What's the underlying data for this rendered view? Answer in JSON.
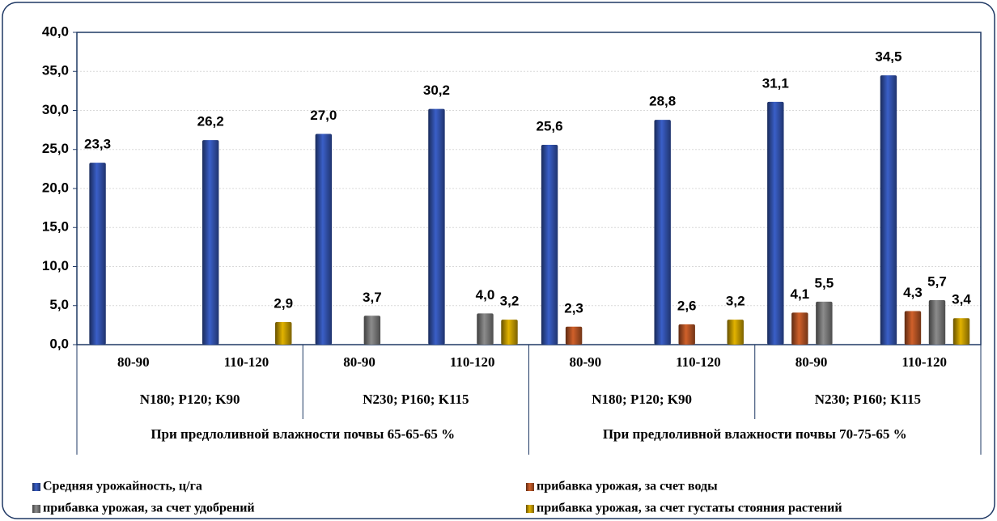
{
  "chart_data": {
    "type": "bar",
    "categories": [
      "80-90",
      "110-120",
      "80-90",
      "110-120",
      "80-90",
      "110-120",
      "80-90",
      "110-120"
    ],
    "category_groups": [
      "N180; P120; K90",
      "N230; P160; K115",
      "N180; P120; K90",
      "N230; P160; K115"
    ],
    "category_supergroups": [
      "При предлоливной влажности почвы 65-65-65 %",
      "При предлоливной влажности почвы 70-75-65 %"
    ],
    "series": [
      {
        "name": "Средняя урожайность, ц/га",
        "color": "#3a5fc8",
        "values": [
          23.3,
          26.2,
          27.0,
          30.2,
          25.6,
          28.8,
          31.1,
          34.5
        ],
        "value_labels": [
          "23,3",
          "26,2",
          "27,0",
          "30,2",
          "25,6",
          "28,8",
          "31,1",
          "34,5"
        ]
      },
      {
        "name": "прибавка урожая, за счет воды",
        "color": "#d0602a",
        "values": [
          null,
          null,
          null,
          null,
          2.3,
          2.6,
          4.1,
          4.3
        ],
        "value_labels": [
          null,
          null,
          null,
          null,
          "2,3",
          "2,6",
          "4,1",
          "4,3"
        ]
      },
      {
        "name": "прибавка урожая, за счет  удобрений",
        "color": "#8c8c8c",
        "values": [
          null,
          null,
          3.7,
          4.0,
          null,
          null,
          5.5,
          5.7
        ],
        "value_labels": [
          null,
          null,
          "3,7",
          "4,0",
          null,
          null,
          "5,5",
          "5,7"
        ]
      },
      {
        "name": "прибавка урожая, за счет густаты стояния растений",
        "color": "#e2b300",
        "values": [
          null,
          2.9,
          null,
          3.2,
          null,
          3.2,
          null,
          3.4
        ],
        "value_labels": [
          null,
          "2,9",
          null,
          "3,2",
          null,
          "3,2",
          null,
          "3,4"
        ]
      }
    ],
    "ylim": [
      0,
      40
    ],
    "yticks": [
      {
        "value": 0,
        "label": "0,0"
      },
      {
        "value": 5,
        "label": "5,0"
      },
      {
        "value": 10,
        "label": "10,0"
      },
      {
        "value": 15,
        "label": "15,0"
      },
      {
        "value": 20,
        "label": "20,0"
      },
      {
        "value": 25,
        "label": "25,0"
      },
      {
        "value": 30,
        "label": "30,0"
      },
      {
        "value": 35,
        "label": "35,0"
      },
      {
        "value": 40,
        "label": "40,0"
      }
    ],
    "grid": true,
    "legend": "bottom"
  }
}
